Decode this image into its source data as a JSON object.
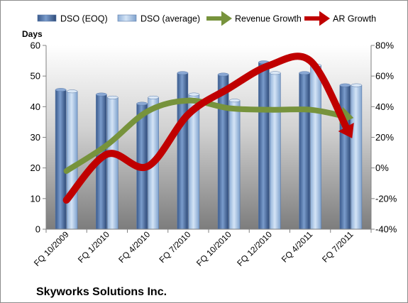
{
  "chart_data": {
    "type": "bar",
    "title": "Skyworks Solutions Inc.",
    "ylabel_left": "Days",
    "ylim_left": [
      0,
      60
    ],
    "yticks_left": [
      "0",
      "10",
      "20",
      "30",
      "40",
      "50",
      "60"
    ],
    "ylim_right": [
      -40,
      80
    ],
    "yticks_right": [
      "-40%",
      "-20%",
      "0%",
      "20%",
      "40%",
      "60%",
      "80%"
    ],
    "categories": [
      "FQ 10/2009",
      "FQ 1/2010",
      "FQ 4/2010",
      "FQ 7/2010",
      "FQ 10/2010",
      "FQ 12/2010",
      "FQ 4/2011",
      "FQ 7/2011"
    ],
    "series": [
      {
        "name": "DSO (EOQ)",
        "kind": "bar",
        "axis": "left",
        "color": "#4f6f9f",
        "values": [
          45.5,
          44,
          41,
          51,
          50.5,
          54.5,
          51,
          47
        ]
      },
      {
        "name": "DSO (average)",
        "kind": "bar",
        "axis": "left",
        "color": "#8db4e2",
        "values": [
          45,
          43,
          43,
          44,
          42,
          51,
          53.5,
          47
        ]
      },
      {
        "name": "Revenue Growth",
        "kind": "line-arrow",
        "axis": "right",
        "color": "#77933c",
        "values": [
          -2,
          15,
          37,
          44,
          39,
          38,
          38,
          33
        ]
      },
      {
        "name": "AR Growth",
        "kind": "line-arrow",
        "axis": "right",
        "color": "#c00000",
        "values": [
          -21,
          9,
          1,
          35,
          52,
          67,
          70,
          21
        ]
      }
    ],
    "grid": false,
    "legend_position": "top"
  }
}
